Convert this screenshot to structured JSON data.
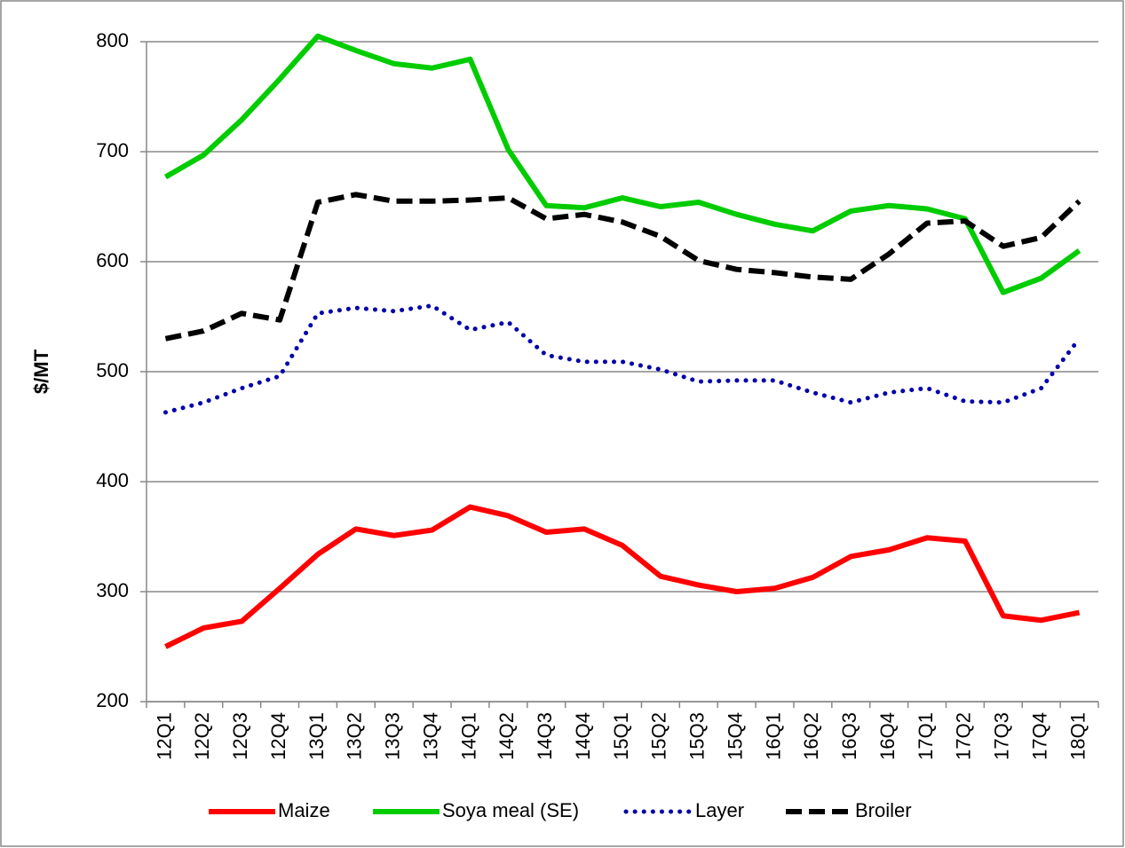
{
  "chart_data": {
    "type": "line",
    "y_label": "$/MT",
    "categories": [
      "12Q1",
      "12Q2",
      "12Q3",
      "12Q4",
      "13Q1",
      "13Q2",
      "13Q3",
      "13Q4",
      "14Q1",
      "14Q2",
      "14Q3",
      "14Q4",
      "15Q1",
      "15Q2",
      "15Q3",
      "15Q4",
      "16Q1",
      "16Q2",
      "16Q3",
      "16Q4",
      "17Q1",
      "17Q2",
      "17Q3",
      "17Q4",
      "18Q1"
    ],
    "series": [
      {
        "name": "Maize",
        "color": "#ff0000",
        "dash": "solid",
        "values": [
          250,
          267,
          273,
          303,
          334,
          357,
          351,
          356,
          377,
          369,
          354,
          357,
          342,
          314,
          306,
          300,
          303,
          313,
          332,
          338,
          349,
          346,
          278,
          274,
          281
        ]
      },
      {
        "name": "Soya meal (SE)",
        "color": "#00cc00",
        "dash": "solid",
        "values": [
          677,
          697,
          729,
          766,
          805,
          792,
          780,
          776,
          784,
          702,
          651,
          649,
          658,
          650,
          654,
          643,
          634,
          628,
          646,
          651,
          648,
          639,
          572,
          585,
          610
        ]
      },
      {
        "name": "Layer",
        "color": "#0000aa",
        "dash": "dotted",
        "values": [
          463,
          472,
          485,
          496,
          553,
          558,
          555,
          560,
          538,
          545,
          515,
          509,
          509,
          502,
          491,
          492,
          492,
          481,
          472,
          481,
          485,
          473,
          472,
          485,
          530
        ]
      },
      {
        "name": "Broiler",
        "color": "#000000",
        "dash": "dashed",
        "values": [
          530,
          537,
          553,
          547,
          654,
          661,
          655,
          655,
          656,
          658,
          639,
          643,
          636,
          623,
          601,
          593,
          590,
          586,
          584,
          607,
          635,
          637,
          614,
          622,
          655
        ]
      }
    ],
    "ylim": [
      200,
      800
    ],
    "yticks": [
      200,
      300,
      400,
      500,
      600,
      700,
      800
    ],
    "grid": true,
    "legend": "bottom"
  }
}
